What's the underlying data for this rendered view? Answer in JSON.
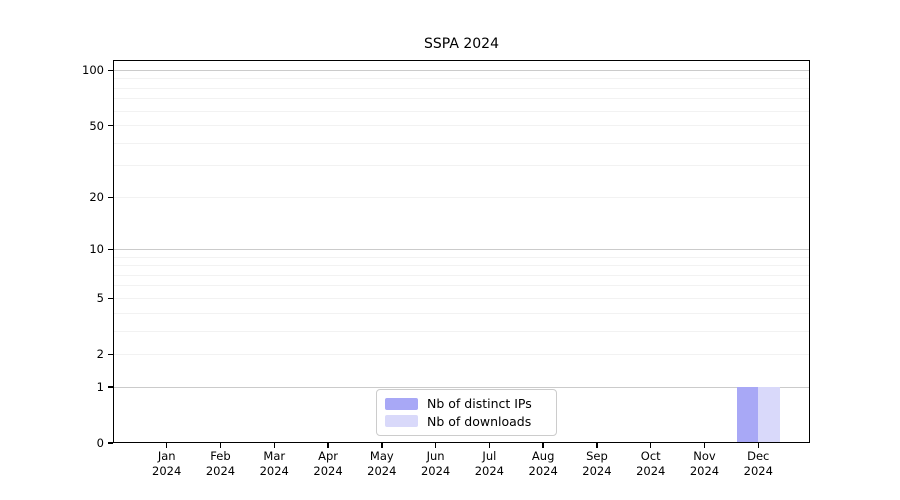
{
  "chart_data": {
    "type": "bar",
    "title": "SSPA 2024",
    "categories": [
      "Jan 2024",
      "Feb 2024",
      "Mar 2024",
      "Apr 2024",
      "May 2024",
      "Jun 2024",
      "Jul 2024",
      "Aug 2024",
      "Sep 2024",
      "Oct 2024",
      "Nov 2024",
      "Dec 2024"
    ],
    "months": [
      {
        "month": "Jan",
        "year": "2024"
      },
      {
        "month": "Feb",
        "year": "2024"
      },
      {
        "month": "Mar",
        "year": "2024"
      },
      {
        "month": "Apr",
        "year": "2024"
      },
      {
        "month": "May",
        "year": "2024"
      },
      {
        "month": "Jun",
        "year": "2024"
      },
      {
        "month": "Jul",
        "year": "2024"
      },
      {
        "month": "Aug",
        "year": "2024"
      },
      {
        "month": "Sep",
        "year": "2024"
      },
      {
        "month": "Oct",
        "year": "2024"
      },
      {
        "month": "Nov",
        "year": "2024"
      },
      {
        "month": "Dec",
        "year": "2024"
      }
    ],
    "series": [
      {
        "name": "Nb of distinct IPs",
        "color": "#a8a8f6",
        "values": [
          0,
          0,
          0,
          0,
          0,
          0,
          0,
          0,
          0,
          0,
          0,
          1
        ]
      },
      {
        "name": "Nb of downloads",
        "color": "#d9d9fa",
        "values": [
          0,
          0,
          0,
          0,
          0,
          0,
          0,
          0,
          0,
          0,
          0,
          1
        ]
      }
    ],
    "yscale": "log1p",
    "ylim": [
      0,
      114
    ],
    "y_ticks": [
      0,
      1,
      2,
      5,
      10,
      20,
      50,
      100
    ],
    "grid_major_values": [
      1,
      10,
      100
    ],
    "grid_minor_values": [
      2,
      3,
      4,
      5,
      6,
      7,
      8,
      9,
      20,
      30,
      40,
      50,
      60,
      70,
      80,
      90
    ],
    "grid": true,
    "legend_position": "lower center",
    "legend_labels": [
      "Nb of distinct IPs",
      "Nb of downloads"
    ]
  }
}
